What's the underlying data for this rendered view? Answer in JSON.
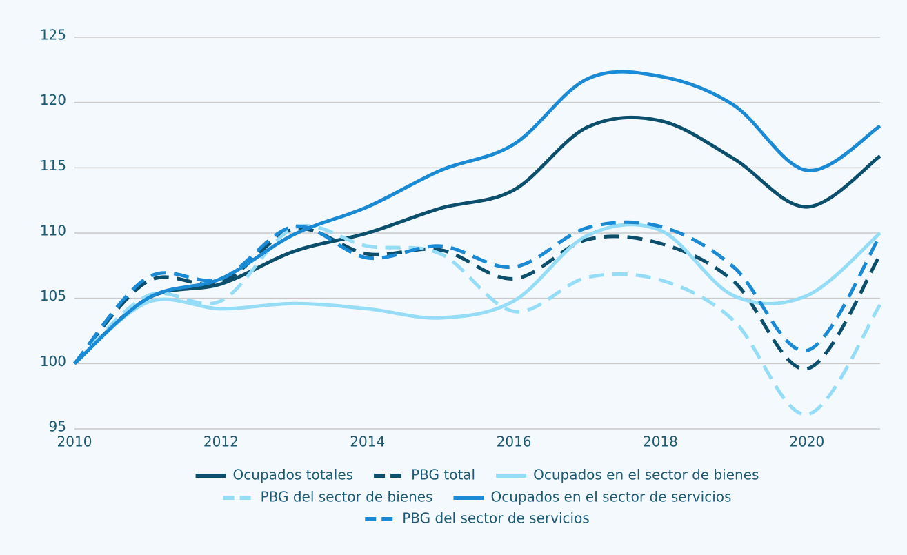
{
  "chart_data": {
    "type": "line",
    "x": [
      2010,
      2011,
      2012,
      2013,
      2014,
      2015,
      2016,
      2017,
      2018,
      2019,
      2020,
      2021
    ],
    "xlim": [
      2010,
      2021
    ],
    "xticks": [
      2010,
      2012,
      2014,
      2016,
      2018,
      2020
    ],
    "ylim": [
      95,
      125
    ],
    "yticks": [
      95,
      100,
      105,
      110,
      115,
      120,
      125
    ],
    "grid": true,
    "legend": "bottom",
    "series": [
      {
        "name": "Ocupados totales",
        "color": "#0b4f6c",
        "dashed": false,
        "values": [
          100,
          105.0,
          106.1,
          108.6,
          110.0,
          111.9,
          113.3,
          118.1,
          118.6,
          115.7,
          112.0,
          115.9
        ]
      },
      {
        "name": "PBG total",
        "color": "#0b4f6c",
        "dashed": true,
        "values": [
          100,
          106.3,
          106.2,
          110.3,
          108.4,
          108.7,
          106.5,
          109.5,
          109.2,
          106.3,
          99.6,
          108.3
        ]
      },
      {
        "name": "Ocupados en el sector de bienes",
        "color": "#95dcf6",
        "dashed": false,
        "values": [
          100,
          104.7,
          104.2,
          104.6,
          104.2,
          103.5,
          104.8,
          109.8,
          110.2,
          105.2,
          105.2,
          110.0
        ]
      },
      {
        "name": "PBG del sector de bienes",
        "color": "#95dcf6",
        "dashed": true,
        "values": [
          100,
          105.2,
          104.8,
          110.4,
          109.0,
          108.4,
          104.0,
          106.6,
          106.4,
          103.3,
          96.1,
          104.5
        ]
      },
      {
        "name": "Ocupados en el sector de servicios",
        "color": "#1a8ad4",
        "dashed": false,
        "values": [
          100,
          105.0,
          106.5,
          109.9,
          112.0,
          114.8,
          116.8,
          121.8,
          122.0,
          119.8,
          114.8,
          118.2
        ]
      },
      {
        "name": "PBG del sector de servicios",
        "color": "#1a8ad4",
        "dashed": true,
        "values": [
          100,
          106.6,
          106.5,
          110.5,
          108.1,
          109.0,
          107.4,
          110.4,
          110.5,
          107.4,
          101.0,
          109.8
        ]
      }
    ]
  }
}
